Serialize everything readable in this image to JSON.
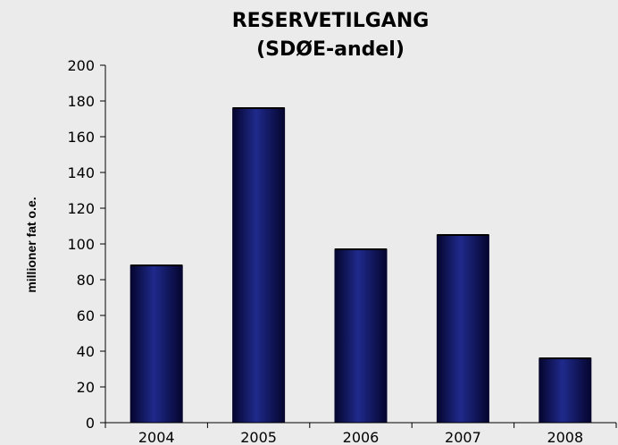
{
  "chart_data": {
    "type": "bar",
    "title": "RESERVETILGANG",
    "subtitle": "(SDØE-andel)",
    "ylabel": "millioner fat o.e.",
    "xlabel": "",
    "categories": [
      "2004",
      "2005",
      "2006",
      "2007",
      "2008"
    ],
    "values": [
      88,
      176,
      97,
      105,
      36
    ],
    "ylim": [
      0,
      200
    ],
    "yticks": [
      0,
      20,
      40,
      60,
      80,
      100,
      120,
      140,
      160,
      180,
      200
    ],
    "grid": false,
    "legend": "none",
    "colors": {
      "background": "#ebebeb",
      "bar_dark": "#05052e",
      "bar_light": "#1f2a8c",
      "axis": "#000000"
    }
  }
}
